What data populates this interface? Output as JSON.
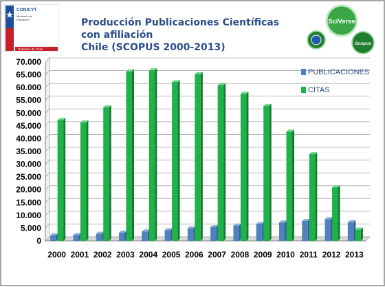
{
  "header": {
    "title_line1": "Producción Publicaciones Científicas con afiliación",
    "title_line2": "Chile (SCOPUS 2000-2013)"
  },
  "logo": {
    "org": "CONICYT",
    "sub1": "Ministerio de",
    "sub2": "Educación",
    "footer": "Gobierno de Chile",
    "icon": "shield-icon",
    "colors": {
      "blue": "#1f4e9a",
      "red": "#c4202a"
    }
  },
  "badges": {
    "sciverse": "SciVerse",
    "scopus": "Scopus",
    "colors": {
      "green": "#3aa646",
      "dark": "#1e7d2e",
      "blue": "#1f5fa8"
    }
  },
  "chart_data": {
    "type": "bar",
    "categories": [
      "2000",
      "2001",
      "2002",
      "2003",
      "2004",
      "2005",
      "2006",
      "2007",
      "2008",
      "2009",
      "2010",
      "2011",
      "2012",
      "2013"
    ],
    "series": [
      {
        "name": "PUBLICACIONES",
        "color": "#4f81bd",
        "values": [
          2200,
          2300,
          2800,
          3200,
          3700,
          4200,
          4900,
          5400,
          6000,
          6600,
          7200,
          7800,
          8500,
          7300
        ]
      },
      {
        "name": "CITAS",
        "color": "#1fb14a",
        "values": [
          47300,
          46300,
          52200,
          66300,
          66700,
          62100,
          65200,
          60900,
          57500,
          52800,
          42700,
          33900,
          20900,
          4400
        ]
      }
    ],
    "yticks": [
      "0",
      "5.000",
      "10.000",
      "15.000",
      "20.000",
      "25.000",
      "30.000",
      "35.000",
      "40.000",
      "45.000",
      "50.000",
      "55.000",
      "60.000",
      "65.000",
      "70.000"
    ],
    "ylim": [
      0,
      70000
    ],
    "grid": true,
    "legend": "top-right"
  }
}
